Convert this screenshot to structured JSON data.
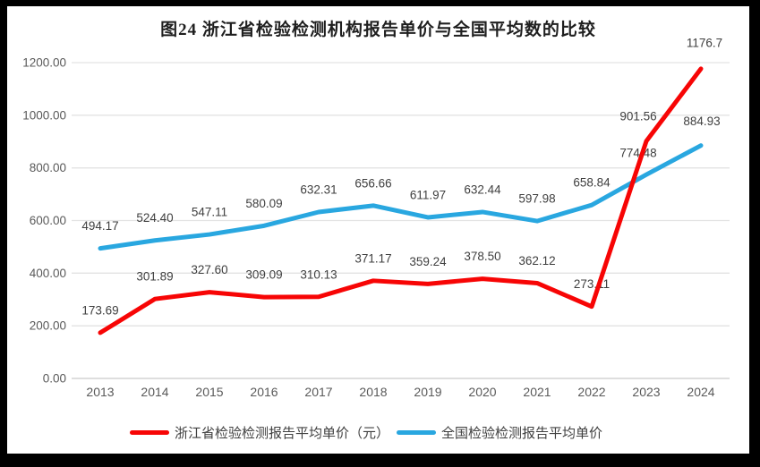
{
  "chart_data": {
    "type": "line",
    "title": "图24  浙江省检验检测机构报告单价与全国平均数的比较",
    "categories": [
      "2013",
      "2014",
      "2015",
      "2016",
      "2017",
      "2018",
      "2019",
      "2020",
      "2021",
      "2022",
      "2023",
      "2024"
    ],
    "series": [
      {
        "name": "浙江省检验检测报告平均单价（元）",
        "color": "#F70505",
        "values": [
          173.69,
          301.89,
          327.6,
          309.09,
          310.13,
          371.17,
          359.24,
          378.5,
          362.12,
          273.11,
          901.56,
          1176.7
        ],
        "labels": [
          "173.69",
          "301.89",
          "327.60",
          "309.09",
          "310.13",
          "371.17",
          "359.24",
          "378.50",
          "362.12",
          "273.11",
          "901.56",
          "1176.7"
        ]
      },
      {
        "name": "全国检验检测报告平均单价",
        "color": "#29A7E0",
        "values": [
          494.17,
          524.4,
          547.11,
          580.09,
          632.31,
          656.66,
          611.97,
          632.44,
          597.98,
          658.84,
          774.48,
          884.93
        ],
        "labels": [
          "494.17",
          "524.40",
          "547.11",
          "580.09",
          "632.31",
          "656.66",
          "611.97",
          "632.44",
          "597.98",
          "658.84",
          "774.48",
          "884.93"
        ]
      }
    ],
    "xlabel": "",
    "ylabel": "",
    "ylim": [
      0,
      1200
    ],
    "ytick_labels": [
      "0.00",
      "200.00",
      "400.00",
      "600.00",
      "800.00",
      "1000.00",
      "1200.00"
    ],
    "grid": true,
    "legend_position": "bottom",
    "colors": {
      "gridline": "#E3E3E3",
      "baseline": "#C9C9C9",
      "tick_text": "#595959",
      "data_label_text": "#3F3F3F"
    }
  }
}
